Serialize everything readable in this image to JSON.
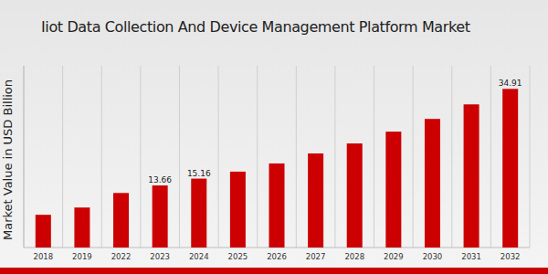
{
  "chart_data": {
    "type": "bar",
    "title": "Iiot Data Collection And Device Management Platform Market",
    "y_label": "Market Value in USD Billion",
    "categories": [
      "2018",
      "2019",
      "2022",
      "2023",
      "2024",
      "2025",
      "2026",
      "2027",
      "2028",
      "2029",
      "2030",
      "2031",
      "2032"
    ],
    "values": [
      7.2,
      8.8,
      12.0,
      13.66,
      15.16,
      16.7,
      18.5,
      20.7,
      22.9,
      25.5,
      28.3,
      31.5,
      34.91
    ],
    "value_labels": [
      null,
      null,
      null,
      "13.66",
      "15.16",
      null,
      null,
      null,
      null,
      null,
      null,
      null,
      "34.91"
    ],
    "data_labels": true,
    "color": "#cc0000",
    "ylim": [
      0,
      40
    ],
    "tick_labels": "x",
    "grid": true
  }
}
